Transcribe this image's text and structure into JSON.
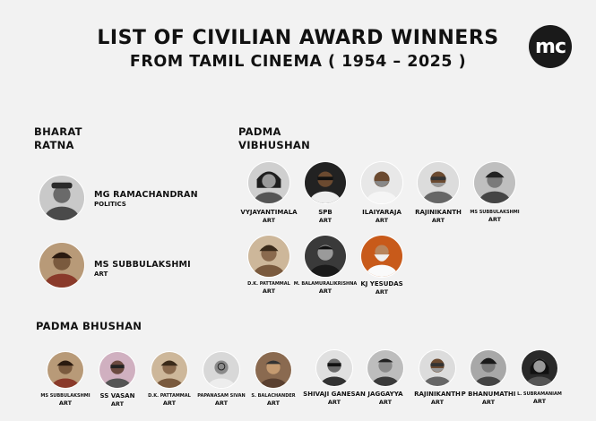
{
  "header": {
    "title_line1": "LIST OF CIVILIAN AWARD WINNERS",
    "title_line2": "FROM TAMIL CINEMA ( 1954 – 2025 )",
    "logo_text": "mc"
  },
  "bharat_ratna": {
    "heading_line1": "BHARAT",
    "heading_line2": "RATNA",
    "people": [
      {
        "name": "MG RAMACHANDRAN",
        "category": "POLITICS"
      },
      {
        "name": "MS SUBBULAKSHMI",
        "category": "ART"
      }
    ]
  },
  "padma_vibhushan": {
    "heading_line1": "PADMA",
    "heading_line2": "VIBHUSHAN",
    "people": [
      {
        "name": "VYJAYANTIMALA",
        "category": "ART"
      },
      {
        "name": "SPB",
        "category": "ART"
      },
      {
        "name": "ILAIYARAJA",
        "category": "ART"
      },
      {
        "name": "RAJINIKANTH",
        "category": "ART"
      },
      {
        "name": "MS SUBBULAKSHMI",
        "category": "ART"
      },
      {
        "name": "D.K. PATTAMMAL",
        "category": "ART"
      },
      {
        "name": "M. BALAMURALIKRISHNA",
        "category": "ART"
      },
      {
        "name": "KJ YESUDAS",
        "category": "ART"
      }
    ]
  },
  "padma_bhushan": {
    "heading": "PADMA BHUSHAN",
    "people": [
      {
        "name": "MS SUBBULAKSHMI",
        "category": "ART"
      },
      {
        "name": "SS VASAN",
        "category": "ART"
      },
      {
        "name": "D.K. PATTAMMAL",
        "category": "ART"
      },
      {
        "name": "PAPANASAM SIVAN",
        "category": "ART"
      },
      {
        "name": "S. BALACHANDER",
        "category": "ART"
      },
      {
        "name": "SHIVAJI GANESAN",
        "category": "ART"
      },
      {
        "name": "JAGGAYYA",
        "category": "ART"
      },
      {
        "name": "RAJINIKANTH",
        "category": "ART"
      },
      {
        "name": "P BHANUMATHI",
        "category": "ART"
      },
      {
        "name": "L. SUBRAMANIAM",
        "category": "ART"
      }
    ]
  },
  "colors": {
    "background": "#f2f2f2",
    "text": "#111111",
    "logo_bg": "#1a1a1a"
  }
}
